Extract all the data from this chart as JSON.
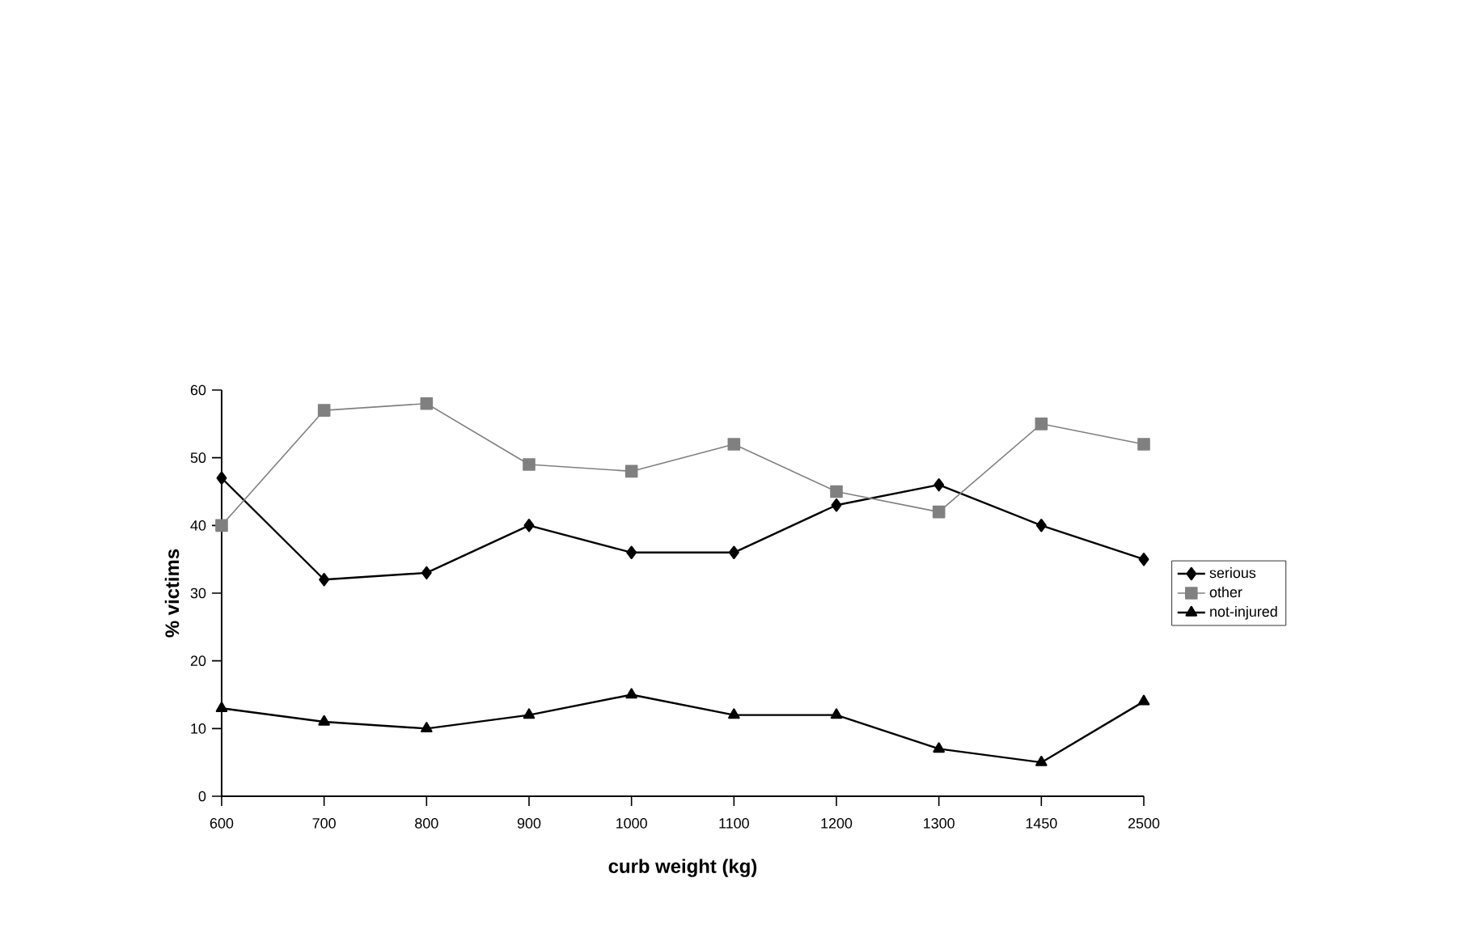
{
  "chart_data": {
    "type": "line",
    "xlabel": "curb weight (kg)",
    "ylabel": "% victims",
    "categories": [
      "600",
      "700",
      "800",
      "900",
      "1000",
      "1100",
      "1200",
      "1300",
      "1450",
      "2500"
    ],
    "series": [
      {
        "name": "serious",
        "color": "#000000",
        "marker": "diamond",
        "values": [
          47,
          32,
          33,
          40,
          36,
          36,
          43,
          46,
          40,
          35
        ]
      },
      {
        "name": "other",
        "color": "#808080",
        "marker": "square",
        "values": [
          40,
          57,
          58,
          49,
          48,
          52,
          45,
          42,
          55,
          52
        ]
      },
      {
        "name": "not-injured",
        "color": "#000000",
        "marker": "triangle",
        "values": [
          13,
          11,
          10,
          12,
          15,
          12,
          12,
          7,
          5,
          14
        ]
      }
    ],
    "ylim": [
      0,
      60
    ],
    "yticks": [
      0,
      10,
      20,
      30,
      40,
      50,
      60
    ],
    "grid": false,
    "legend": "right",
    "line_style": "solid"
  }
}
